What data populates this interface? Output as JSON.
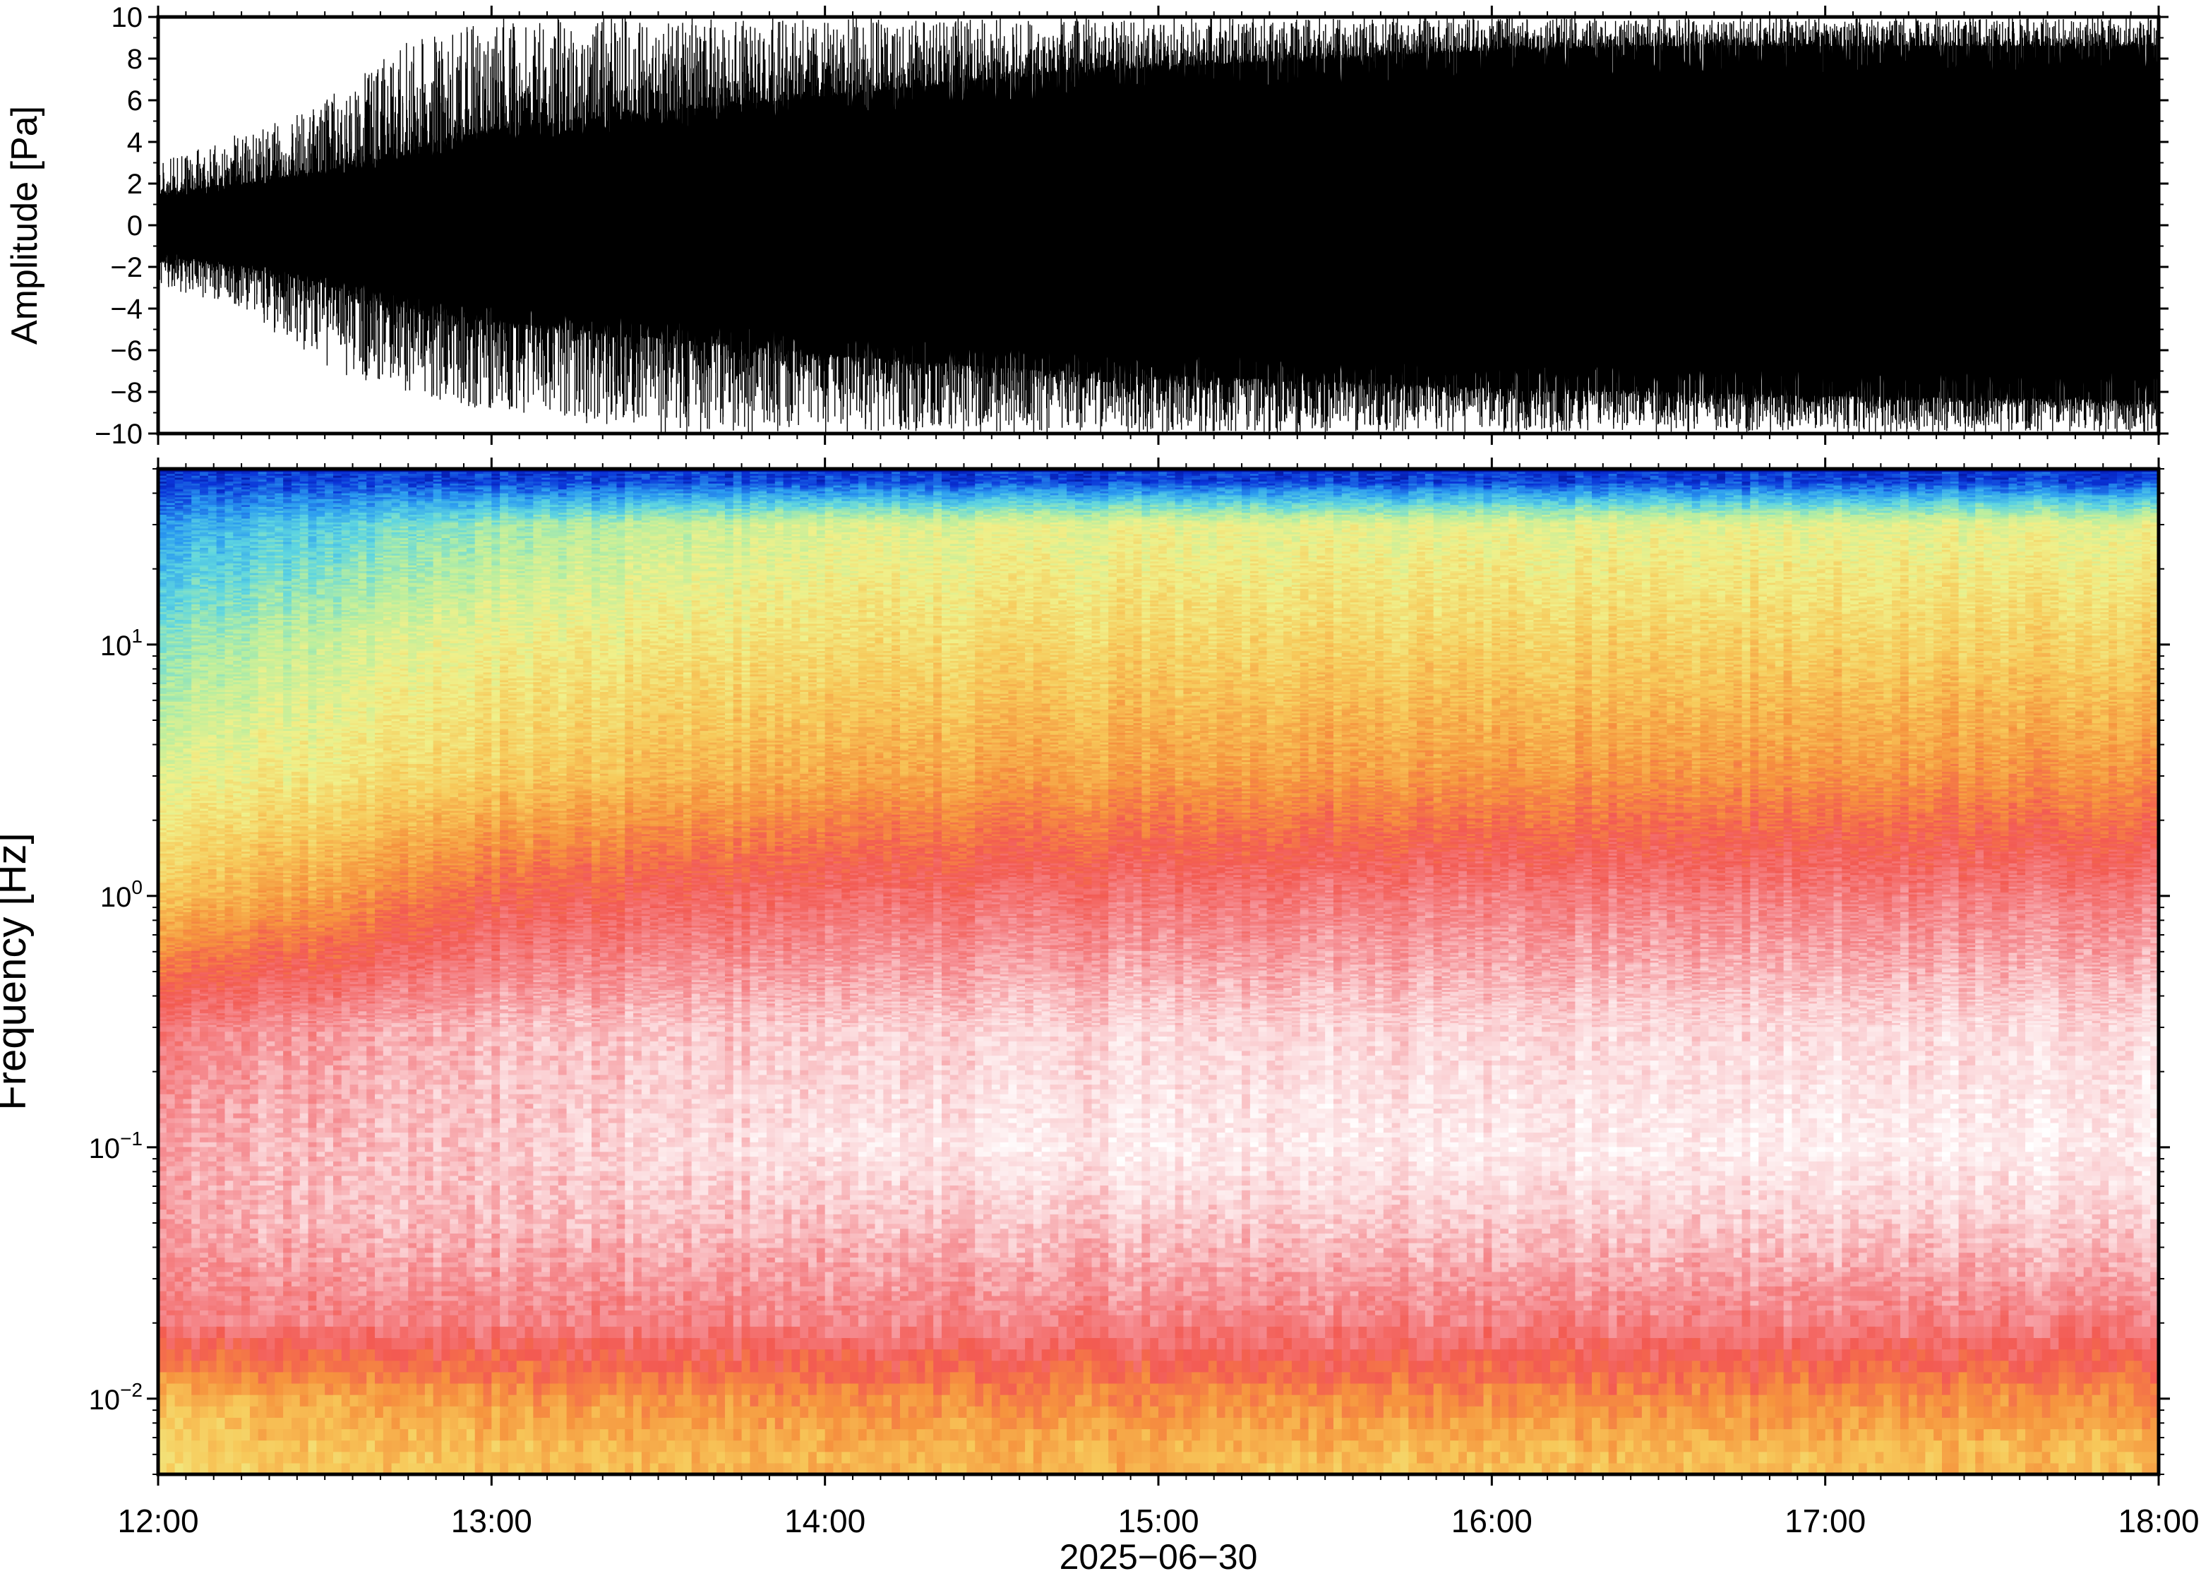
{
  "figure": {
    "date_label": "2025−06−30"
  },
  "chart_data": [
    {
      "type": "line",
      "name": "waveform",
      "ylabel": "Amplitude [Pa]",
      "xlabel": "",
      "ylim": [
        -10,
        10
      ],
      "yticks": [
        -10,
        -8,
        -6,
        -4,
        -2,
        0,
        2,
        4,
        6,
        8,
        10
      ],
      "ytick_labels": [
        "−10",
        "−8",
        "−6",
        "−4",
        "−2",
        "0",
        "2",
        "4",
        "6",
        "8",
        "10"
      ],
      "x_range": [
        "12:00",
        "18:00"
      ],
      "envelope": {
        "time": [
          "12:00",
          "12:15",
          "12:30",
          "12:45",
          "13:00",
          "13:30",
          "14:00",
          "14:30",
          "15:00",
          "15:30",
          "16:00",
          "16:30",
          "17:00",
          "17:30",
          "18:00"
        ],
        "upper": [
          1.5,
          2.0,
          2.6,
          3.6,
          4.6,
          5.4,
          6.2,
          7.0,
          7.6,
          8.0,
          8.4,
          8.6,
          8.6,
          8.6,
          8.6
        ],
        "lower": [
          -1.5,
          -2.0,
          -2.8,
          -4.0,
          -4.6,
          -5.4,
          -6.2,
          -6.8,
          -7.2,
          -7.5,
          -7.8,
          -8.0,
          -8.2,
          -8.3,
          -8.4
        ],
        "peak_upper": [
          3.0,
          4.5,
          6.0,
          9.0,
          10.0,
          10.0,
          10.0,
          10.0,
          10.0,
          10.0,
          10.0,
          10.0,
          10.0,
          10.0,
          10.0
        ],
        "peak_lower": [
          -3.0,
          -4.0,
          -7.0,
          -8.0,
          -9.0,
          -10.0,
          -10.0,
          -10.0,
          -10.0,
          -10.0,
          -10.0,
          -10.0,
          -10.0,
          -10.0,
          -10.0
        ]
      },
      "grid": false
    },
    {
      "type": "heatmap",
      "name": "spectrogram",
      "ylabel": "Frequency [Hz]",
      "xlabel": "",
      "y_scale": "log",
      "ylim": [
        0.005,
        50
      ],
      "yticks": [
        0.01,
        0.1,
        1,
        10
      ],
      "ytick_labels": [
        {
          "base": "10",
          "exp": "−2"
        },
        {
          "base": "10",
          "exp": "−1"
        },
        {
          "base": "10",
          "exp": "0"
        },
        {
          "base": "10",
          "exp": "1"
        }
      ],
      "x_range": [
        "12:00",
        "18:00"
      ],
      "xticks": [
        "12:00",
        "13:00",
        "14:00",
        "15:00",
        "16:00",
        "17:00",
        "18:00"
      ],
      "colormap": [
        "#00007a",
        "#0a34d8",
        "#2b9cf0",
        "#5fd6e0",
        "#b8eea0",
        "#f0f08a",
        "#f7c95a",
        "#f6943e",
        "#f35a52",
        "#f58a8f",
        "#fbd3d6",
        "#ffffff"
      ],
      "relative_level_profile": {
        "time": [
          "12:00",
          "12:30",
          "13:00",
          "14:00",
          "15:00",
          "16:00",
          "17:00",
          "18:00"
        ],
        "freq_hz": [
          0.006,
          0.01,
          0.02,
          0.05,
          0.1,
          0.3,
          1,
          3,
          10,
          30,
          45
        ],
        "level": [
          [
            0.52,
            0.58,
            0.8,
            0.85,
            0.86,
            0.8,
            0.56,
            0.44,
            0.33,
            0.2,
            0.1
          ],
          [
            0.55,
            0.6,
            0.8,
            0.88,
            0.88,
            0.84,
            0.62,
            0.48,
            0.4,
            0.26,
            0.1
          ],
          [
            0.56,
            0.63,
            0.8,
            0.88,
            0.9,
            0.88,
            0.72,
            0.54,
            0.46,
            0.34,
            0.1
          ],
          [
            0.58,
            0.64,
            0.8,
            0.88,
            0.94,
            0.9,
            0.76,
            0.6,
            0.5,
            0.42,
            0.1
          ],
          [
            0.58,
            0.65,
            0.8,
            0.9,
            0.96,
            0.92,
            0.78,
            0.62,
            0.52,
            0.44,
            0.1
          ],
          [
            0.57,
            0.65,
            0.8,
            0.9,
            0.96,
            0.92,
            0.8,
            0.63,
            0.53,
            0.44,
            0.1
          ],
          [
            0.57,
            0.65,
            0.8,
            0.91,
            0.97,
            0.93,
            0.8,
            0.64,
            0.53,
            0.44,
            0.1
          ],
          [
            0.57,
            0.65,
            0.8,
            0.91,
            0.96,
            0.93,
            0.8,
            0.64,
            0.53,
            0.44,
            0.1
          ]
        ]
      }
    }
  ]
}
